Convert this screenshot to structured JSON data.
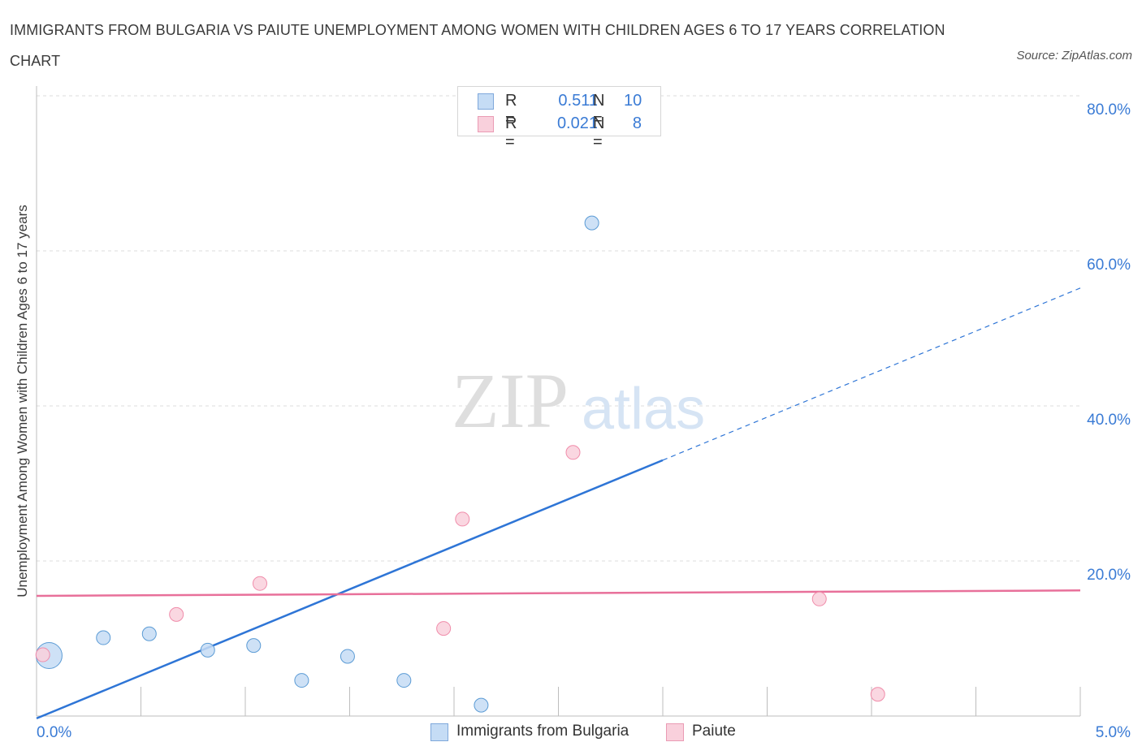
{
  "title": "IMMIGRANTS FROM BULGARIA VS PAIUTE UNEMPLOYMENT AMONG WOMEN WITH CHILDREN AGES 6 TO 17 YEARS CORRELATION CHART",
  "source": "Source: ZipAtlas.com",
  "watermark": {
    "zip": "ZIP",
    "atlas": "atlas"
  },
  "legend": {
    "rows": [
      {
        "r_key": "R =",
        "r_value": "0.511",
        "n_key": "N =",
        "n_value": "10"
      },
      {
        "r_key": "R =",
        "r_value": "0.021",
        "n_key": "N =",
        "n_value": "8"
      }
    ]
  },
  "chart_data": {
    "type": "scatter",
    "title": "IMMIGRANTS FROM BULGARIA VS PAIUTE UNEMPLOYMENT AMONG WOMEN WITH CHILDREN AGES 6 TO 17 YEARS CORRELATION CHART",
    "xlabel": "",
    "ylabel": "Unemployment Among Women with Children Ages 6 to 17 years",
    "xlim": [
      0,
      5
    ],
    "ylim": [
      0,
      80
    ],
    "x_tick_labels": [
      "0.0%",
      "5.0%"
    ],
    "y_ticks": [
      20,
      40,
      60,
      80
    ],
    "y_tick_labels": [
      "20.0%",
      "40.0%",
      "60.0%",
      "80.0%"
    ],
    "grid": true,
    "series": [
      {
        "name": "Immigrants from Bulgaria",
        "color": "#5b9bd5",
        "fill": "#c5dcf5",
        "r": 0.511,
        "n": 10,
        "points": [
          {
            "x": 0.06,
            "y": 7.8,
            "size": "large"
          },
          {
            "x": 0.32,
            "y": 10.1
          },
          {
            "x": 0.54,
            "y": 10.6
          },
          {
            "x": 0.82,
            "y": 8.5
          },
          {
            "x": 1.04,
            "y": 9.1
          },
          {
            "x": 1.27,
            "y": 4.6
          },
          {
            "x": 1.49,
            "y": 7.7
          },
          {
            "x": 1.76,
            "y": 4.6
          },
          {
            "x": 2.13,
            "y": 1.4
          },
          {
            "x": 2.66,
            "y": 63.6
          }
        ],
        "trend": {
          "x0": 0.0,
          "y0": -0.3,
          "x1": 3.0,
          "y1": 33.0,
          "x_end": 5.0,
          "y_end": 55.2
        }
      },
      {
        "name": "Paiute",
        "color": "#f08caa",
        "fill": "#f9d0dc",
        "r": 0.021,
        "n": 8,
        "points": [
          {
            "x": 0.03,
            "y": 7.9
          },
          {
            "x": 0.67,
            "y": 13.1
          },
          {
            "x": 1.07,
            "y": 17.1
          },
          {
            "x": 1.95,
            "y": 11.3
          },
          {
            "x": 2.04,
            "y": 25.4
          },
          {
            "x": 2.57,
            "y": 34.0
          },
          {
            "x": 3.75,
            "y": 15.1
          },
          {
            "x": 4.03,
            "y": 2.8
          }
        ],
        "trend": {
          "x0": 0.0,
          "y0": 15.5,
          "x1": 5.0,
          "y1": 16.2
        }
      }
    ]
  },
  "colors": {
    "blue_line": "#2e75d6",
    "pink_line": "#e8709a",
    "axis_text": "#3a7bd5",
    "grid": "#dcdcdc"
  }
}
